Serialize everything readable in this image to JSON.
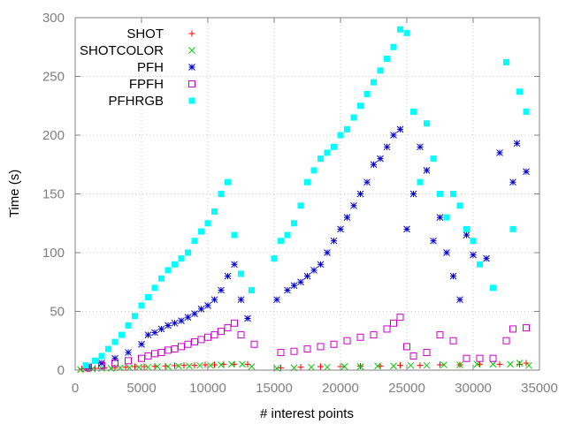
{
  "chart_data": {
    "type": "scatter",
    "title": "",
    "xlabel": "# interest points",
    "ylabel": "Time (s)",
    "xlim": [
      0,
      35000
    ],
    "ylim": [
      0,
      300
    ],
    "xticks": [
      0,
      5000,
      10000,
      15000,
      20000,
      25000,
      30000,
      35000
    ],
    "yticks": [
      0,
      50,
      100,
      150,
      200,
      250,
      300
    ],
    "grid": true,
    "legend_position": "top-left",
    "series": [
      {
        "name": "SHOT",
        "marker": "plus",
        "color": "#ff0000",
        "points": [
          [
            500,
            1
          ],
          [
            900,
            1
          ],
          [
            1500,
            1.5
          ],
          [
            2200,
            2
          ],
          [
            3000,
            2
          ],
          [
            3800,
            2.5
          ],
          [
            4500,
            3
          ],
          [
            5200,
            3
          ],
          [
            6000,
            3.2
          ],
          [
            6800,
            3.5
          ],
          [
            7500,
            3.8
          ],
          [
            8200,
            4
          ],
          [
            9000,
            4
          ],
          [
            9800,
            4.5
          ],
          [
            10500,
            4.5
          ],
          [
            11200,
            5
          ],
          [
            12000,
            5
          ],
          [
            13000,
            5
          ],
          [
            15500,
            2
          ],
          [
            17000,
            2.5
          ],
          [
            18500,
            3
          ],
          [
            20000,
            3
          ],
          [
            21500,
            3.5
          ],
          [
            23000,
            3.5
          ],
          [
            24500,
            4
          ],
          [
            26000,
            4
          ],
          [
            27500,
            4.5
          ],
          [
            29000,
            4.5
          ],
          [
            30500,
            5
          ],
          [
            32000,
            5
          ],
          [
            33500,
            5
          ],
          [
            34000,
            6
          ]
        ]
      },
      {
        "name": "SHOTCOLOR",
        "marker": "cross",
        "color": "#00cc00",
        "points": [
          [
            400,
            0.5
          ],
          [
            800,
            1
          ],
          [
            1300,
            1
          ],
          [
            2000,
            1.5
          ],
          [
            2700,
            1.5
          ],
          [
            3400,
            2
          ],
          [
            4100,
            2
          ],
          [
            4800,
            2.5
          ],
          [
            5500,
            2.5
          ],
          [
            6200,
            3
          ],
          [
            7000,
            3
          ],
          [
            7800,
            3.5
          ],
          [
            8600,
            3.5
          ],
          [
            9400,
            4
          ],
          [
            10200,
            4
          ],
          [
            11000,
            4.5
          ],
          [
            11800,
            5
          ],
          [
            12600,
            5
          ],
          [
            13300,
            3
          ],
          [
            15200,
            1.5
          ],
          [
            16500,
            2
          ],
          [
            17800,
            2.5
          ],
          [
            19000,
            2.5
          ],
          [
            20300,
            3
          ],
          [
            21500,
            3
          ],
          [
            22800,
            3.5
          ],
          [
            24000,
            3.5
          ],
          [
            25300,
            4
          ],
          [
            26500,
            4
          ],
          [
            27800,
            4.5
          ],
          [
            29000,
            4.5
          ],
          [
            30300,
            5
          ],
          [
            31500,
            5
          ],
          [
            32800,
            5
          ],
          [
            33500,
            6
          ],
          [
            34200,
            4
          ]
        ]
      },
      {
        "name": "PFH",
        "marker": "star",
        "color": "#0000cc",
        "points": [
          [
            1000,
            3
          ],
          [
            2000,
            6
          ],
          [
            3000,
            10
          ],
          [
            4000,
            15
          ],
          [
            5000,
            22
          ],
          [
            5500,
            30
          ],
          [
            6000,
            32
          ],
          [
            6500,
            35
          ],
          [
            7000,
            38
          ],
          [
            7500,
            40
          ],
          [
            8000,
            42
          ],
          [
            8500,
            45
          ],
          [
            9000,
            48
          ],
          [
            9500,
            52
          ],
          [
            10000,
            55
          ],
          [
            10500,
            60
          ],
          [
            11000,
            68
          ],
          [
            11500,
            80
          ],
          [
            12000,
            90
          ],
          [
            12500,
            60
          ],
          [
            13000,
            44
          ],
          [
            15200,
            60
          ],
          [
            16000,
            68
          ],
          [
            16500,
            72
          ],
          [
            17000,
            75
          ],
          [
            17500,
            80
          ],
          [
            18000,
            85
          ],
          [
            18500,
            90
          ],
          [
            19000,
            100
          ],
          [
            19500,
            110
          ],
          [
            20000,
            120
          ],
          [
            20500,
            130
          ],
          [
            21000,
            140
          ],
          [
            21500,
            150
          ],
          [
            22000,
            160
          ],
          [
            22500,
            175
          ],
          [
            23000,
            180
          ],
          [
            23500,
            190
          ],
          [
            24000,
            200
          ],
          [
            24500,
            205
          ],
          [
            25000,
            120
          ],
          [
            25500,
            150
          ],
          [
            26000,
            190
          ],
          [
            26500,
            170
          ],
          [
            27000,
            110
          ],
          [
            27500,
            130
          ],
          [
            28000,
            100
          ],
          [
            28500,
            80
          ],
          [
            29000,
            60
          ],
          [
            29500,
            115
          ],
          [
            30000,
            98
          ],
          [
            31000,
            95
          ],
          [
            32000,
            185
          ],
          [
            33000,
            160
          ],
          [
            33300,
            193
          ],
          [
            34000,
            169
          ]
        ]
      },
      {
        "name": "FPFH",
        "marker": "square-open",
        "color": "#cc00cc",
        "points": [
          [
            1000,
            2
          ],
          [
            2000,
            4
          ],
          [
            3000,
            6
          ],
          [
            4000,
            8
          ],
          [
            5000,
            10
          ],
          [
            5500,
            12
          ],
          [
            6000,
            14
          ],
          [
            6500,
            15
          ],
          [
            7000,
            17
          ],
          [
            7500,
            18
          ],
          [
            8000,
            20
          ],
          [
            8500,
            22
          ],
          [
            9000,
            24
          ],
          [
            9500,
            26
          ],
          [
            10000,
            28
          ],
          [
            10500,
            30
          ],
          [
            11000,
            33
          ],
          [
            11500,
            36
          ],
          [
            12000,
            40
          ],
          [
            12500,
            30
          ],
          [
            13500,
            22
          ],
          [
            15500,
            15
          ],
          [
            16500,
            16
          ],
          [
            17500,
            18
          ],
          [
            18500,
            20
          ],
          [
            19500,
            22
          ],
          [
            20500,
            25
          ],
          [
            21500,
            28
          ],
          [
            22500,
            30
          ],
          [
            23500,
            35
          ],
          [
            24000,
            40
          ],
          [
            24500,
            45
          ],
          [
            25000,
            20
          ],
          [
            25500,
            12
          ],
          [
            26500,
            15
          ],
          [
            27500,
            30
          ],
          [
            28500,
            25
          ],
          [
            29500,
            10
          ],
          [
            30500,
            10
          ],
          [
            31500,
            10
          ],
          [
            32500,
            25
          ],
          [
            33000,
            35
          ],
          [
            34000,
            36
          ]
        ]
      },
      {
        "name": "PFHRGB",
        "marker": "square-filled",
        "color": "#00ffff",
        "points": [
          [
            800,
            4
          ],
          [
            1500,
            8
          ],
          [
            2000,
            12
          ],
          [
            2500,
            18
          ],
          [
            3000,
            24
          ],
          [
            3500,
            30
          ],
          [
            4000,
            38
          ],
          [
            4500,
            46
          ],
          [
            5000,
            55
          ],
          [
            5500,
            62
          ],
          [
            6000,
            70
          ],
          [
            6500,
            78
          ],
          [
            7000,
            85
          ],
          [
            7500,
            90
          ],
          [
            8000,
            95
          ],
          [
            8500,
            100
          ],
          [
            9000,
            110
          ],
          [
            9500,
            118
          ],
          [
            10000,
            125
          ],
          [
            10500,
            135
          ],
          [
            11000,
            150
          ],
          [
            11500,
            160
          ],
          [
            12000,
            115
          ],
          [
            12500,
            82
          ],
          [
            13300,
            68
          ],
          [
            15000,
            95
          ],
          [
            15500,
            110
          ],
          [
            16000,
            115
          ],
          [
            16500,
            125
          ],
          [
            17000,
            140
          ],
          [
            17500,
            160
          ],
          [
            18000,
            170
          ],
          [
            18500,
            180
          ],
          [
            19000,
            185
          ],
          [
            19500,
            190
          ],
          [
            20000,
            200
          ],
          [
            20500,
            205
          ],
          [
            21000,
            215
          ],
          [
            21500,
            225
          ],
          [
            22000,
            235
          ],
          [
            22500,
            245
          ],
          [
            23000,
            255
          ],
          [
            23500,
            265
          ],
          [
            24000,
            275
          ],
          [
            24500,
            290
          ],
          [
            25000,
            287
          ],
          [
            25500,
            220
          ],
          [
            26000,
            160
          ],
          [
            26500,
            210
          ],
          [
            27000,
            180
          ],
          [
            27500,
            150
          ],
          [
            28000,
            130
          ],
          [
            28500,
            150
          ],
          [
            29000,
            140
          ],
          [
            29500,
            120
          ],
          [
            30000,
            110
          ],
          [
            30500,
            90
          ],
          [
            31500,
            70
          ],
          [
            32500,
            262
          ],
          [
            33000,
            120
          ],
          [
            33500,
            237
          ],
          [
            34000,
            220
          ]
        ]
      }
    ]
  }
}
